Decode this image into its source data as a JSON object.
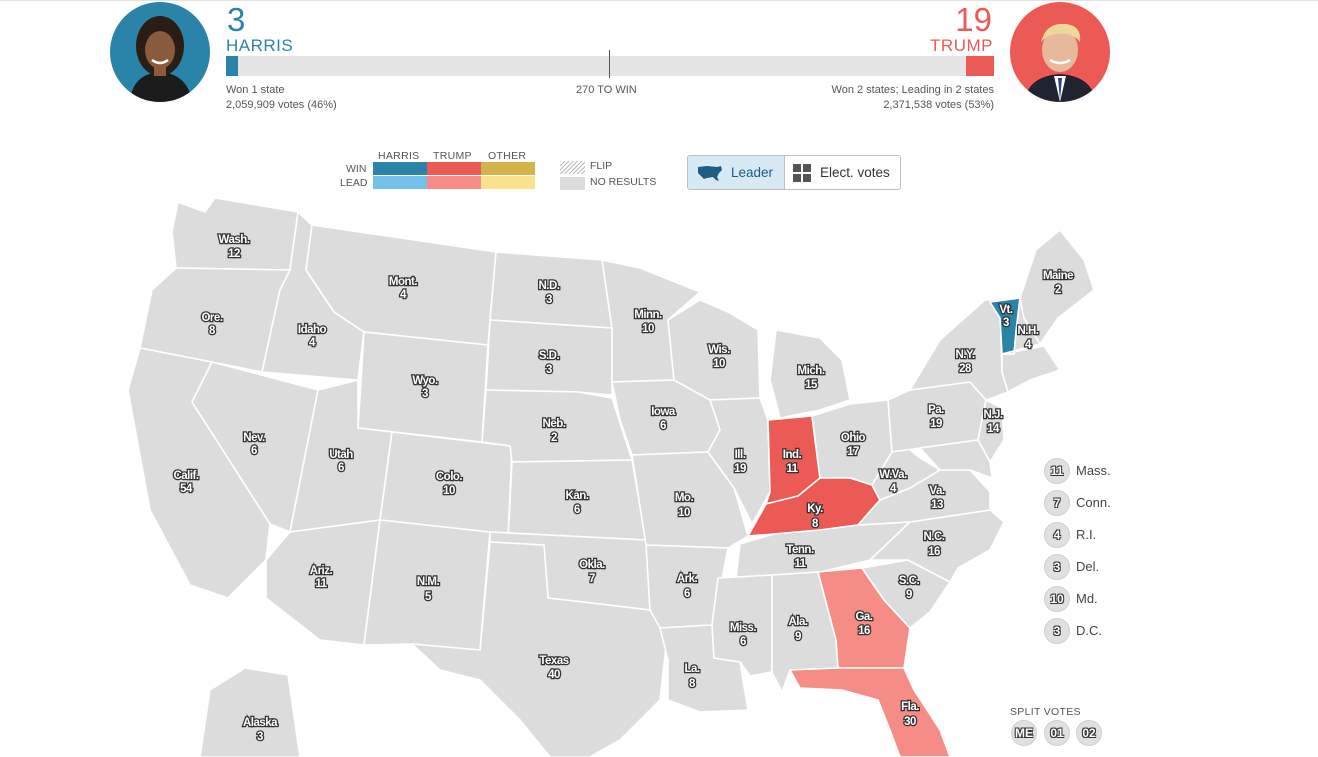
{
  "colors": {
    "harris_win": "#2a83a8",
    "harris_lead": "#73c0e8",
    "trump_win": "#ec5a55",
    "trump_lead": "#f58c85",
    "other_win": "#d4b44a",
    "other_lead": "#f8e38b",
    "no_results": "#dcdcdc"
  },
  "header": {
    "harris": {
      "electoral_votes": "3",
      "name": "HARRIS",
      "status": "Won 1 state",
      "votes": "2,059,909 votes (46%)"
    },
    "trump": {
      "electoral_votes": "19",
      "name": "TRUMP",
      "status": "Won 2 states; Leading in 2 states",
      "votes": "2,371,538 votes (53%)"
    },
    "threshold_label": "270 TO WIN"
  },
  "legend": {
    "columns": [
      "HARRIS",
      "TRUMP",
      "OTHER"
    ],
    "rows": [
      "WIN",
      "LEAD"
    ],
    "flip": "FLIP",
    "no_results": "NO RESULTS"
  },
  "toggle": {
    "leader": "Leader",
    "elect_votes": "Elect. votes"
  },
  "states": {
    "wa": {
      "abbr": "Wash.",
      "ev": "12"
    },
    "or": {
      "abbr": "Ore.",
      "ev": "8"
    },
    "ca": {
      "abbr": "Calif.",
      "ev": "54"
    },
    "id": {
      "abbr": "Idaho",
      "ev": "4"
    },
    "nv": {
      "abbr": "Nev.",
      "ev": "6"
    },
    "mt": {
      "abbr": "Mont.",
      "ev": "4"
    },
    "wy": {
      "abbr": "Wyo.",
      "ev": "3"
    },
    "ut": {
      "abbr": "Utah",
      "ev": "6"
    },
    "az": {
      "abbr": "Ariz.",
      "ev": "11"
    },
    "co": {
      "abbr": "Colo.",
      "ev": "10"
    },
    "nm": {
      "abbr": "N.M.",
      "ev": "5"
    },
    "nd": {
      "abbr": "N.D.",
      "ev": "3"
    },
    "sd": {
      "abbr": "S.D.",
      "ev": "3"
    },
    "ne": {
      "abbr": "Neb.",
      "ev": "2"
    },
    "ks": {
      "abbr": "Kan.",
      "ev": "6"
    },
    "ok": {
      "abbr": "Okla.",
      "ev": "7"
    },
    "tx": {
      "abbr": "Texas",
      "ev": "40"
    },
    "mn": {
      "abbr": "Minn.",
      "ev": "10"
    },
    "ia": {
      "abbr": "Iowa",
      "ev": "6"
    },
    "mo": {
      "abbr": "Mo.",
      "ev": "10"
    },
    "ar": {
      "abbr": "Ark.",
      "ev": "6"
    },
    "la": {
      "abbr": "La.",
      "ev": "8"
    },
    "wi": {
      "abbr": "Wis.",
      "ev": "10"
    },
    "il": {
      "abbr": "Ill.",
      "ev": "19"
    },
    "mi": {
      "abbr": "Mich.",
      "ev": "15"
    },
    "in": {
      "abbr": "Ind.",
      "ev": "11"
    },
    "oh": {
      "abbr": "Ohio",
      "ev": "17"
    },
    "ky": {
      "abbr": "Ky.",
      "ev": "8"
    },
    "tn": {
      "abbr": "Tenn.",
      "ev": "11"
    },
    "ms": {
      "abbr": "Miss.",
      "ev": "6"
    },
    "al": {
      "abbr": "Ala.",
      "ev": "9"
    },
    "ga": {
      "abbr": "Ga.",
      "ev": "16"
    },
    "fl": {
      "abbr": "Fla.",
      "ev": "30"
    },
    "sc": {
      "abbr": "S.C.",
      "ev": "9"
    },
    "nc": {
      "abbr": "N.C.",
      "ev": "16"
    },
    "va": {
      "abbr": "Va.",
      "ev": "13"
    },
    "wv": {
      "abbr": "W.Va.",
      "ev": "4"
    },
    "pa": {
      "abbr": "Pa.",
      "ev": "19"
    },
    "ny": {
      "abbr": "N.Y.",
      "ev": "28"
    },
    "nj": {
      "abbr": "N.J.",
      "ev": "14"
    },
    "vt": {
      "abbr": "Vt.",
      "ev": "3"
    },
    "nh": {
      "abbr": "N.H.",
      "ev": "4"
    },
    "me": {
      "abbr": "Maine",
      "ev": "2"
    },
    "ak": {
      "abbr": "Alaska",
      "ev": "3"
    }
  },
  "small_states": [
    {
      "ev": "11",
      "name": "Mass."
    },
    {
      "ev": "7",
      "name": "Conn."
    },
    {
      "ev": "4",
      "name": "R.I."
    },
    {
      "ev": "3",
      "name": "Del."
    },
    {
      "ev": "10",
      "name": "Md."
    },
    {
      "ev": "3",
      "name": "D.C."
    }
  ],
  "split_votes": {
    "title": "SPLIT VOTES",
    "items": [
      "ME",
      "01",
      "02"
    ]
  }
}
